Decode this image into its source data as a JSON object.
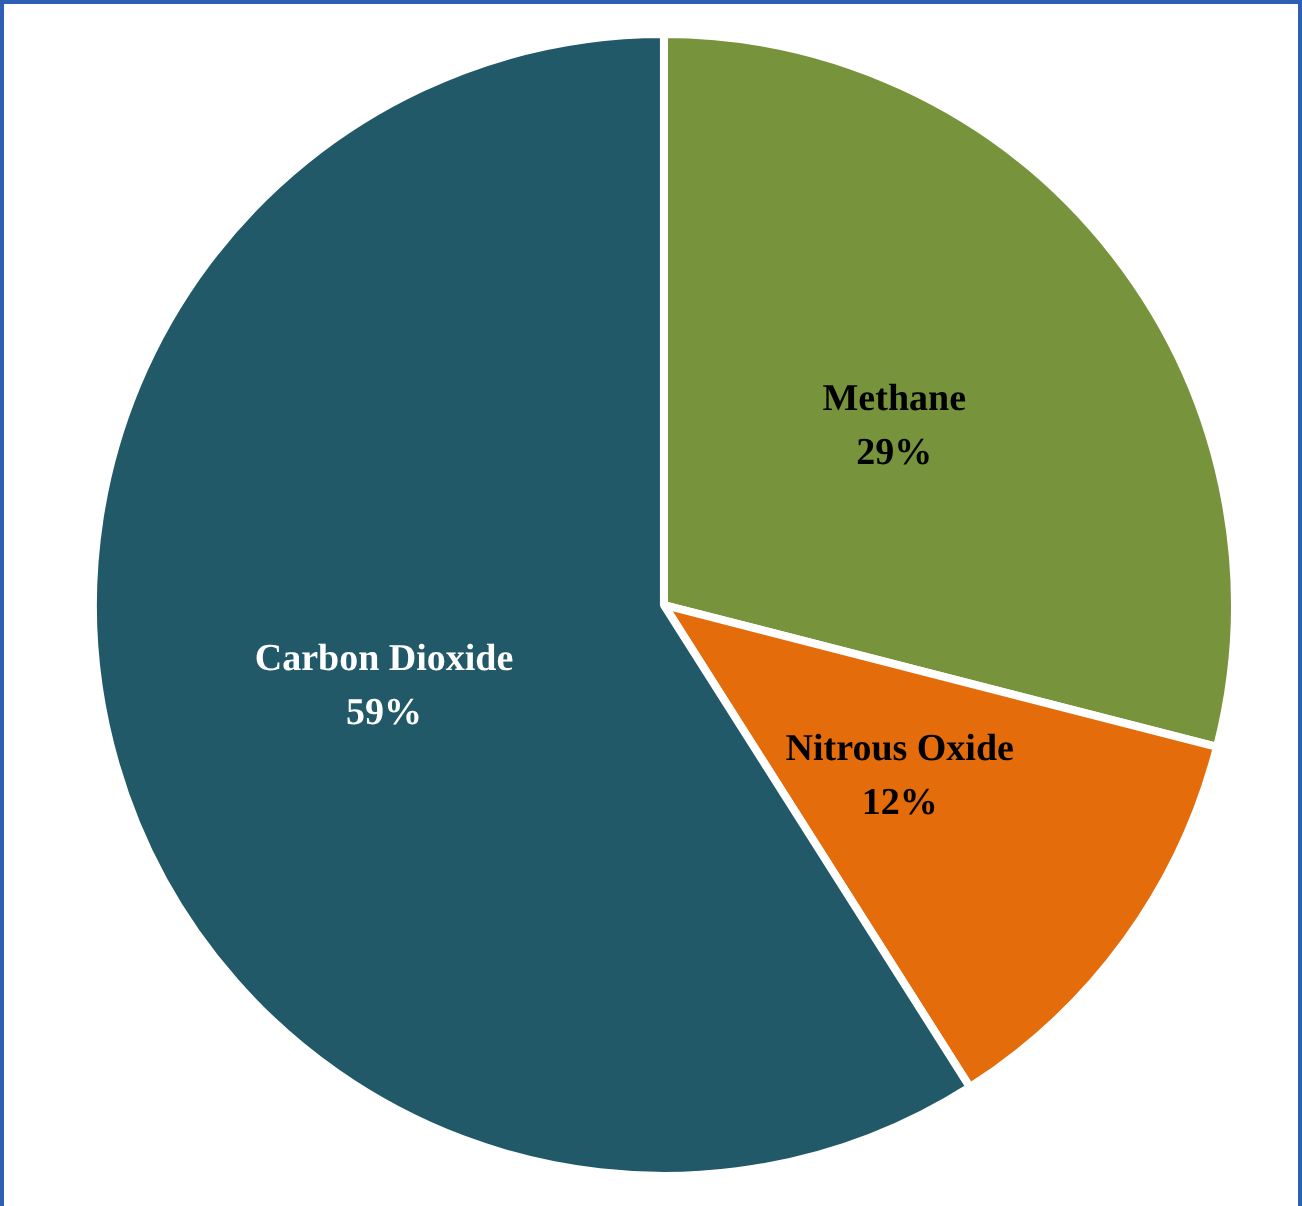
{
  "chart_data": {
    "type": "pie",
    "categories": [
      "Methane",
      "Nitrous Oxide",
      "Carbon Dioxide"
    ],
    "values": [
      29,
      12,
      59
    ],
    "value_labels": [
      "29%",
      "12%",
      "59%"
    ],
    "colors": [
      "#77933c",
      "#e46c0a",
      "#215968"
    ],
    "legend": false
  }
}
